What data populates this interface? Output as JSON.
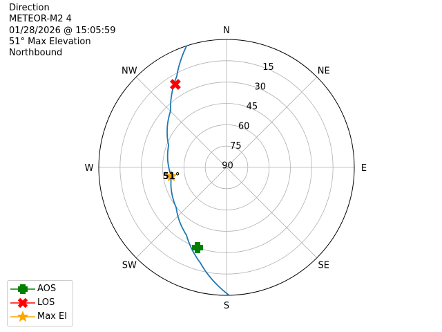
{
  "info": {
    "lines": [
      "Direction",
      "METEOR-M2 4",
      "01/28/2026 @ 15:05:59",
      "51° Max Elevation",
      "Northbound"
    ]
  },
  "chart_data": {
    "type": "polar",
    "theta_direction": "clockwise",
    "theta_zero": "N",
    "compass_labels": [
      "N",
      "NE",
      "E",
      "SE",
      "S",
      "SW",
      "W",
      "NW"
    ],
    "radial_ticks": [
      "15",
      "30",
      "45",
      "60",
      "75",
      "90"
    ],
    "radial_axis": "elevation (deg), 90 at center, 0 at edge",
    "grid": true,
    "track": {
      "color": "#1f77b4",
      "points": [
        {
          "az": 178.8,
          "el": 0
        },
        {
          "az": 195.4,
          "el": 20.4
        },
        {
          "az": 210.6,
          "el": 34.6
        },
        {
          "az": 231.5,
          "el": 44.7
        },
        {
          "az": 260.8,
          "el": 50.6
        },
        {
          "az": 290.9,
          "el": 46.3
        },
        {
          "az": 315.4,
          "el": 33.9
        },
        {
          "az": 331.4,
          "el": 16.8
        },
        {
          "az": 341.8,
          "el": 0
        }
      ]
    },
    "markers": [
      {
        "name": "AOS",
        "az": 199.9,
        "el": 30,
        "color": "#008000",
        "shape": "plus"
      },
      {
        "name": "LOS",
        "az": 328.3,
        "el": 21.4,
        "color": "#ff0000",
        "shape": "x"
      },
      {
        "name": "Max El",
        "az": 260.8,
        "el": 50.6,
        "color": "#ffa500",
        "shape": "star"
      }
    ],
    "max_el_label": "51°",
    "legend": {
      "placement": "lower-left",
      "entries": [
        "AOS",
        "LOS",
        "Max El"
      ]
    }
  }
}
